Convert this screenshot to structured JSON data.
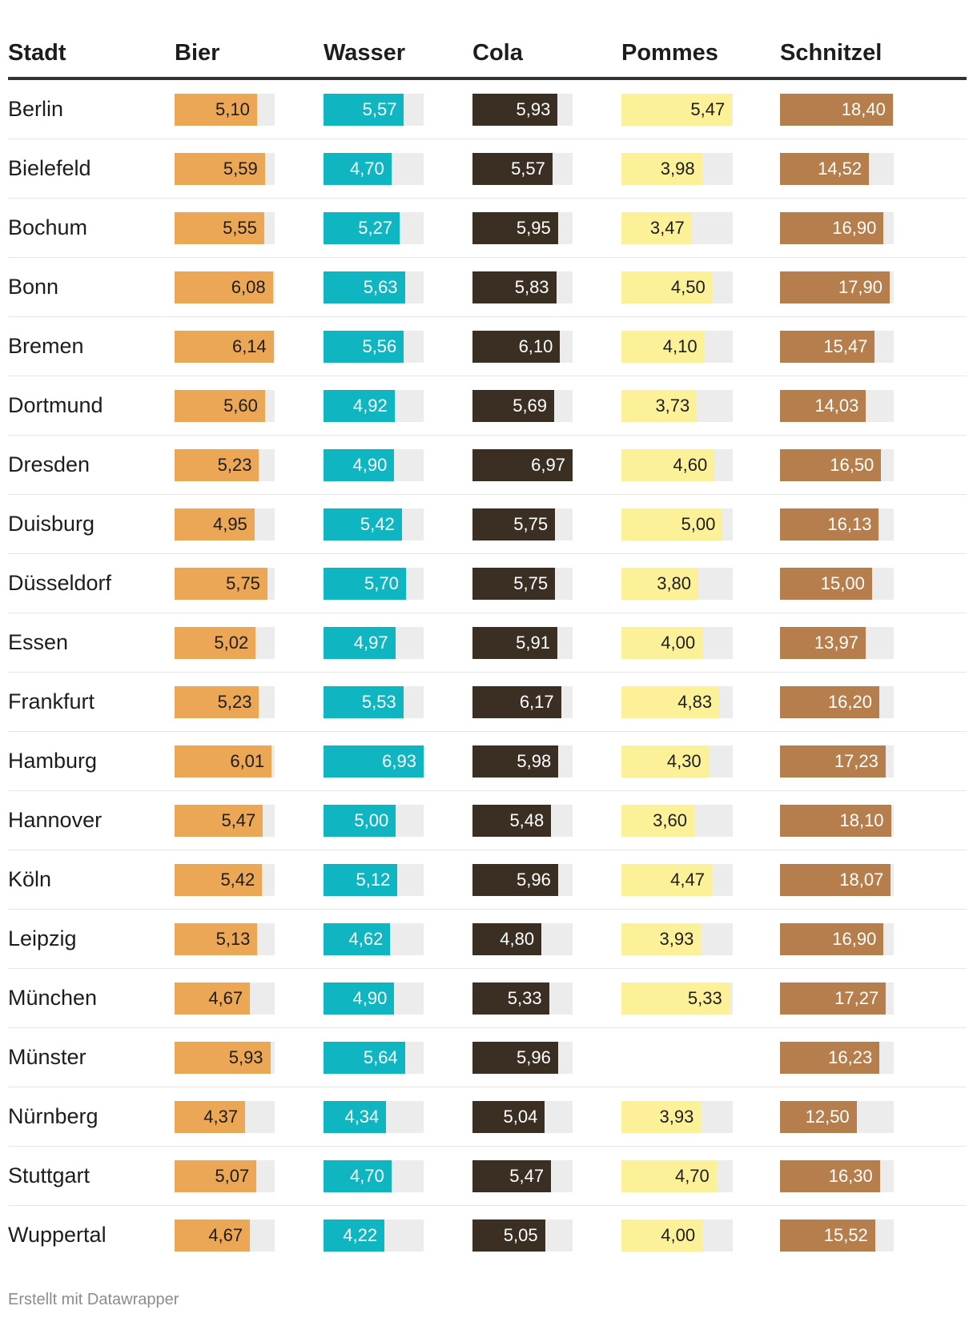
{
  "chart_data": {
    "type": "table",
    "columns": [
      "Stadt",
      "Bier",
      "Wasser",
      "Cola",
      "Pommes",
      "Schnitzel"
    ],
    "series_colors": {
      "Bier": {
        "fill": "#eba755",
        "text": "#1d1d1d",
        "max": 6.2
      },
      "Wasser": {
        "fill": "#0fb6c1",
        "text": "#ffffff",
        "max": 6.93
      },
      "Cola": {
        "fill": "#3b2f24",
        "text": "#ffffff",
        "max": 6.97
      },
      "Pommes": {
        "fill": "#fcf099",
        "text": "#1d1d1d",
        "max": 5.5
      },
      "Schnitzel": {
        "fill": "#b57e4c",
        "text": "#ffffff",
        "max": 18.55
      }
    },
    "rows": [
      {
        "Stadt": "Berlin",
        "Bier": "5,10",
        "Wasser": "5,57",
        "Cola": "5,93",
        "Pommes": "5,47",
        "Schnitzel": "18,40"
      },
      {
        "Stadt": "Bielefeld",
        "Bier": "5,59",
        "Wasser": "4,70",
        "Cola": "5,57",
        "Pommes": "3,98",
        "Schnitzel": "14,52"
      },
      {
        "Stadt": "Bochum",
        "Bier": "5,55",
        "Wasser": "5,27",
        "Cola": "5,95",
        "Pommes": "3,47",
        "Schnitzel": "16,90"
      },
      {
        "Stadt": "Bonn",
        "Bier": "6,08",
        "Wasser": "5,63",
        "Cola": "5,83",
        "Pommes": "4,50",
        "Schnitzel": "17,90"
      },
      {
        "Stadt": "Bremen",
        "Bier": "6,14",
        "Wasser": "5,56",
        "Cola": "6,10",
        "Pommes": "4,10",
        "Schnitzel": "15,47"
      },
      {
        "Stadt": "Dortmund",
        "Bier": "5,60",
        "Wasser": "4,92",
        "Cola": "5,69",
        "Pommes": "3,73",
        "Schnitzel": "14,03"
      },
      {
        "Stadt": "Dresden",
        "Bier": "5,23",
        "Wasser": "4,90",
        "Cola": "6,97",
        "Pommes": "4,60",
        "Schnitzel": "16,50"
      },
      {
        "Stadt": "Duisburg",
        "Bier": "4,95",
        "Wasser": "5,42",
        "Cola": "5,75",
        "Pommes": "5,00",
        "Schnitzel": "16,13"
      },
      {
        "Stadt": "Düsseldorf",
        "Bier": "5,75",
        "Wasser": "5,70",
        "Cola": "5,75",
        "Pommes": "3,80",
        "Schnitzel": "15,00"
      },
      {
        "Stadt": "Essen",
        "Bier": "5,02",
        "Wasser": "4,97",
        "Cola": "5,91",
        "Pommes": "4,00",
        "Schnitzel": "13,97"
      },
      {
        "Stadt": "Frankfurt",
        "Bier": "5,23",
        "Wasser": "5,53",
        "Cola": "6,17",
        "Pommes": "4,83",
        "Schnitzel": "16,20"
      },
      {
        "Stadt": "Hamburg",
        "Bier": "6,01",
        "Wasser": "6,93",
        "Cola": "5,98",
        "Pommes": "4,30",
        "Schnitzel": "17,23"
      },
      {
        "Stadt": "Hannover",
        "Bier": "5,47",
        "Wasser": "5,00",
        "Cola": "5,48",
        "Pommes": "3,60",
        "Schnitzel": "18,10"
      },
      {
        "Stadt": "Köln",
        "Bier": "5,42",
        "Wasser": "5,12",
        "Cola": "5,96",
        "Pommes": "4,47",
        "Schnitzel": "18,07"
      },
      {
        "Stadt": "Leipzig",
        "Bier": "5,13",
        "Wasser": "4,62",
        "Cola": "4,80",
        "Pommes": "3,93",
        "Schnitzel": "16,90"
      },
      {
        "Stadt": "München",
        "Bier": "4,67",
        "Wasser": "4,90",
        "Cola": "5,33",
        "Pommes": "5,33",
        "Schnitzel": "17,27"
      },
      {
        "Stadt": "Münster",
        "Bier": "5,93",
        "Wasser": "5,64",
        "Cola": "5,96",
        "Pommes": null,
        "Schnitzel": "16,23"
      },
      {
        "Stadt": "Nürnberg",
        "Bier": "4,37",
        "Wasser": "4,34",
        "Cola": "5,04",
        "Pommes": "3,93",
        "Schnitzel": "12,50"
      },
      {
        "Stadt": "Stuttgart",
        "Bier": "5,07",
        "Wasser": "4,70",
        "Cola": "5,47",
        "Pommes": "4,70",
        "Schnitzel": "16,30"
      },
      {
        "Stadt": "Wuppertal",
        "Bier": "4,67",
        "Wasser": "4,22",
        "Cola": "5,05",
        "Pommes": "4,00",
        "Schnitzel": "15,52"
      }
    ]
  },
  "footer": {
    "text": "Erstellt mit Datawrapper"
  }
}
